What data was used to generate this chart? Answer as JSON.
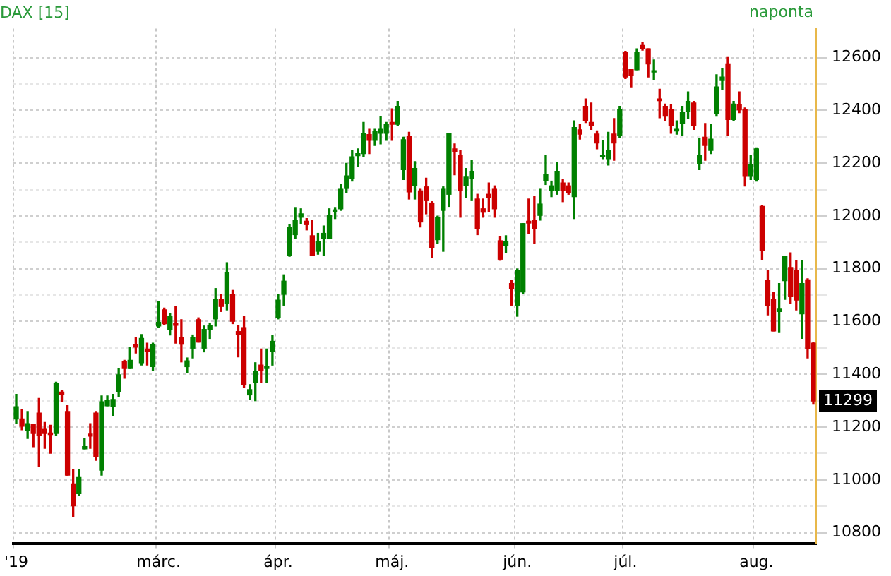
{
  "chart_data": {
    "type": "candlestick",
    "title": "DAX [15]",
    "annotations": [
      "naponta",
      {
        "text": "11299",
        "y": 11299
      }
    ],
    "categories": [
      "'19",
      null,
      null,
      null,
      null,
      null,
      null,
      null,
      null,
      null,
      null,
      null,
      null,
      null,
      null,
      null,
      null,
      null,
      null,
      null,
      null,
      null,
      null,
      null,
      null,
      "márc.",
      null,
      null,
      null,
      null,
      null,
      null,
      null,
      null,
      null,
      null,
      null,
      null,
      null,
      null,
      null,
      null,
      null,
      null,
      null,
      null,
      "ápr.",
      null,
      null,
      null,
      null,
      null,
      null,
      null,
      null,
      null,
      null,
      null,
      null,
      null,
      null,
      null,
      null,
      null,
      null,
      null,
      "máj.",
      null,
      null,
      null,
      null,
      null,
      null,
      null,
      null,
      null,
      null,
      null,
      null,
      null,
      null,
      null,
      null,
      null,
      null,
      null,
      null,
      null,
      "jún.",
      null,
      null,
      null,
      null,
      null,
      null,
      null,
      null,
      null,
      null,
      null,
      null,
      null,
      null,
      null,
      null,
      null,
      null,
      "júl.",
      null,
      null,
      null,
      null,
      null,
      null,
      null,
      null,
      null,
      null,
      null,
      null,
      null,
      null,
      null,
      null,
      null,
      null,
      null,
      null,
      null,
      null,
      "aug.",
      null,
      null,
      null,
      null,
      null,
      null,
      null,
      null,
      null,
      null
    ],
    "ohlc": [
      [
        11231,
        11324,
        11213,
        11277
      ],
      [
        11231,
        11268,
        11190,
        11203
      ],
      [
        11188,
        11259,
        11157,
        11213
      ],
      [
        11211,
        11211,
        11126,
        11176
      ],
      [
        11253,
        11309,
        11050,
        11170
      ],
      [
        11192,
        11218,
        11120,
        11176
      ],
      [
        11177,
        11207,
        11101,
        11172
      ],
      [
        11176,
        11370,
        11170,
        11364
      ],
      [
        11333,
        11340,
        11296,
        11322
      ],
      [
        11259,
        11281,
        11018,
        11018
      ],
      [
        10985,
        11040,
        10861,
        10902
      ],
      [
        10948,
        11040,
        10941,
        11009
      ],
      [
        11118,
        11157,
        11118,
        11126
      ],
      [
        11174,
        11213,
        11120,
        11166
      ],
      [
        11253,
        11259,
        11074,
        11089
      ],
      [
        11037,
        11318,
        11018,
        11296
      ],
      [
        11281,
        11318,
        11281,
        11300
      ],
      [
        11277,
        11324,
        11244,
        11305
      ],
      [
        11333,
        11422,
        11314,
        11398
      ],
      [
        11447,
        11453,
        11385,
        11422
      ],
      [
        11422,
        11503,
        11422,
        11453
      ],
      [
        11514,
        11540,
        11481,
        11503
      ],
      [
        11444,
        11551,
        11435,
        11536
      ],
      [
        11496,
        11518,
        11435,
        11488
      ],
      [
        11429,
        11518,
        11416,
        11514
      ],
      [
        11583,
        11675,
        11577,
        11597
      ],
      [
        11644,
        11651,
        11588,
        11592
      ],
      [
        11570,
        11629,
        11549,
        11620
      ],
      [
        11592,
        11657,
        11518,
        11586
      ],
      [
        11540,
        11607,
        11447,
        11514
      ],
      [
        11429,
        11462,
        11407,
        11451
      ],
      [
        11499,
        11549,
        11462,
        11540
      ],
      [
        11607,
        11614,
        11522,
        11522
      ],
      [
        11499,
        11583,
        11485,
        11570
      ],
      [
        11570,
        11592,
        11536,
        11586
      ],
      [
        11610,
        11725,
        11583,
        11684
      ],
      [
        11684,
        11703,
        11638,
        11657
      ],
      [
        11670,
        11823,
        11644,
        11786
      ],
      [
        11703,
        11718,
        11592,
        11601
      ],
      [
        11562,
        11586,
        11466,
        11551
      ],
      [
        11577,
        11620,
        11351,
        11361
      ],
      [
        11322,
        11361,
        11305,
        11342
      ],
      [
        11370,
        11444,
        11300,
        11412
      ],
      [
        11435,
        11496,
        11370,
        11416
      ],
      [
        11422,
        11496,
        11370,
        11429
      ],
      [
        11488,
        11546,
        11435,
        11525
      ],
      [
        11614,
        11703,
        11610,
        11681
      ],
      [
        11703,
        11777,
        11662,
        11753
      ],
      [
        11851,
        11966,
        11847,
        11956
      ],
      [
        11929,
        12032,
        11916,
        11984
      ],
      [
        11995,
        12027,
        11971,
        12008
      ],
      [
        11980,
        11990,
        11947,
        11967
      ],
      [
        11925,
        11984,
        11851,
        11851
      ],
      [
        11866,
        11934,
        11855,
        11903
      ],
      [
        11916,
        11962,
        11851,
        11934
      ],
      [
        11916,
        12027,
        11916,
        12002
      ],
      [
        12017,
        12032,
        11990,
        12023
      ],
      [
        12027,
        12119,
        12021,
        12101
      ],
      [
        12104,
        12199,
        12088,
        12152
      ],
      [
        12143,
        12248,
        12132,
        12224
      ],
      [
        12228,
        12254,
        12187,
        12236
      ],
      [
        12236,
        12354,
        12224,
        12313
      ],
      [
        12308,
        12328,
        12236,
        12286
      ],
      [
        12286,
        12328,
        12267,
        12321
      ],
      [
        12313,
        12378,
        12273,
        12328
      ],
      [
        12313,
        12354,
        12286,
        12347
      ],
      [
        12354,
        12406,
        12286,
        12347
      ],
      [
        12347,
        12434,
        12341,
        12415
      ],
      [
        12175,
        12298,
        12138,
        12289
      ],
      [
        12302,
        12317,
        12064,
        12091
      ],
      [
        12114,
        12206,
        12064,
        12180
      ],
      [
        12095,
        12101,
        11958,
        11977
      ],
      [
        12110,
        12143,
        12008,
        12058
      ],
      [
        12049,
        12054,
        11842,
        11879
      ],
      [
        11910,
        11999,
        11897,
        11993
      ],
      [
        12021,
        12110,
        11866,
        12101
      ],
      [
        12082,
        12313,
        12036,
        12313
      ],
      [
        12254,
        12273,
        12156,
        12243
      ],
      [
        12230,
        12248,
        11995,
        12095
      ],
      [
        12114,
        12180,
        12069,
        12147
      ],
      [
        12143,
        12212,
        12058,
        12169
      ],
      [
        12064,
        12082,
        11929,
        11953
      ],
      [
        12027,
        12064,
        11995,
        12014
      ],
      [
        12082,
        12125,
        12017,
        12069
      ],
      [
        12101,
        12114,
        11995,
        12027
      ],
      [
        11906,
        11921,
        11832,
        11836
      ],
      [
        11888,
        11925,
        11860,
        11903
      ],
      [
        11744,
        11755,
        11662,
        11725
      ],
      [
        11662,
        11799,
        11620,
        11792
      ],
      [
        11712,
        11971,
        11707,
        11971
      ],
      [
        11980,
        12064,
        11934,
        11973
      ],
      [
        11984,
        12073,
        11897,
        11953
      ],
      [
        12002,
        12101,
        11984,
        12045
      ],
      [
        12134,
        12230,
        12119,
        12156
      ],
      [
        12097,
        12132,
        12073,
        12114
      ],
      [
        12097,
        12202,
        12082,
        12169
      ],
      [
        12125,
        12138,
        12054,
        12097
      ],
      [
        12114,
        12125,
        12082,
        12088
      ],
      [
        12073,
        12360,
        11990,
        12335
      ],
      [
        12326,
        12347,
        12291,
        12310
      ],
      [
        12415,
        12443,
        12354,
        12360
      ],
      [
        12354,
        12428,
        12328,
        12341
      ],
      [
        12310,
        12322,
        12254,
        12276
      ],
      [
        12224,
        12286,
        12217,
        12230
      ],
      [
        12217,
        12317,
        12193,
        12248
      ],
      [
        12310,
        12369,
        12211,
        12276
      ],
      [
        12304,
        12415,
        12298,
        12402
      ],
      [
        12619,
        12624,
        12520,
        12526
      ],
      [
        12554,
        12554,
        12489,
        12532
      ],
      [
        12554,
        12633,
        12554,
        12619
      ],
      [
        12646,
        12656,
        12628,
        12633
      ],
      [
        12633,
        12633,
        12526,
        12576
      ],
      [
        12545,
        12591,
        12517,
        12548
      ],
      [
        12443,
        12480,
        12372,
        12437
      ],
      [
        12415,
        12424,
        12360,
        12378
      ],
      [
        12402,
        12421,
        12313,
        12341
      ],
      [
        12322,
        12360,
        12310,
        12328
      ],
      [
        12350,
        12415,
        12304,
        12391
      ],
      [
        12396,
        12470,
        12369,
        12434
      ],
      [
        12428,
        12434,
        12328,
        12341
      ],
      [
        12199,
        12295,
        12175,
        12230
      ],
      [
        12298,
        12350,
        12211,
        12267
      ],
      [
        12248,
        12347,
        12236,
        12291
      ],
      [
        12387,
        12535,
        12378,
        12489
      ],
      [
        12513,
        12557,
        12480,
        12526
      ],
      [
        12576,
        12600,
        12304,
        12365
      ],
      [
        12365,
        12434,
        12360,
        12424
      ],
      [
        12421,
        12470,
        12391,
        12402
      ],
      [
        12402,
        12409,
        12113,
        12150
      ],
      [
        12150,
        12230,
        12138,
        12193
      ],
      [
        12138,
        12258,
        12132,
        12254
      ],
      [
        12036,
        12040,
        11836,
        11869
      ],
      [
        11755,
        11795,
        11625,
        11662
      ],
      [
        11684,
        11712,
        11564,
        11564
      ],
      [
        11638,
        11744,
        11558,
        11647
      ],
      [
        11755,
        11847,
        11684,
        11847
      ],
      [
        11805,
        11860,
        11670,
        11694
      ],
      [
        11795,
        11832,
        11644,
        11681
      ],
      [
        11629,
        11832,
        11536,
        11744
      ],
      [
        11758,
        11762,
        11462,
        11496
      ],
      [
        11518,
        11522,
        11287,
        11299
      ]
    ],
    "colors": [
      "#008000",
      "#cc0000",
      "#008000",
      "#cc0000",
      "#cc0000",
      "#cc0000",
      "#cc0000",
      "#008000",
      "#cc0000",
      "#cc0000",
      "#cc0000",
      "#008000",
      "#008000",
      "#cc0000",
      "#cc0000",
      "#008000",
      "#008000",
      "#008000",
      "#008000",
      "#cc0000",
      "#008000",
      "#cc0000",
      "#008000",
      "#cc0000",
      "#008000",
      "#008000",
      "#cc0000",
      "#008000",
      "#cc0000",
      "#cc0000",
      "#008000",
      "#008000",
      "#cc0000",
      "#008000",
      "#008000",
      "#008000",
      "#cc0000",
      "#008000",
      "#cc0000",
      "#cc0000",
      "#cc0000",
      "#008000",
      "#008000",
      "#cc0000",
      "#008000",
      "#008000",
      "#008000",
      "#008000",
      "#008000",
      "#008000",
      "#008000",
      "#cc0000",
      "#cc0000",
      "#008000",
      "#008000",
      "#008000",
      "#008000",
      "#008000",
      "#008000",
      "#008000",
      "#008000",
      "#008000",
      "#cc0000",
      "#008000",
      "#008000",
      "#008000",
      "#cc0000",
      "#008000",
      "#008000",
      "#cc0000",
      "#008000",
      "#cc0000",
      "#cc0000",
      "#cc0000",
      "#008000",
      "#008000",
      "#008000",
      "#cc0000",
      "#cc0000",
      "#008000",
      "#008000",
      "#cc0000",
      "#cc0000",
      "#cc0000",
      "#cc0000",
      "#cc0000",
      "#008000",
      "#cc0000",
      "#008000",
      "#008000",
      "#cc0000",
      "#cc0000",
      "#008000",
      "#008000",
      "#008000",
      "#008000",
      "#cc0000",
      "#cc0000",
      "#008000",
      "#cc0000",
      "#cc0000",
      "#cc0000",
      "#cc0000",
      "#008000",
      "#008000",
      "#cc0000",
      "#008000",
      "#cc0000",
      "#cc0000",
      "#008000",
      "#cc0000",
      "#cc0000",
      "#008000",
      "#cc0000",
      "#cc0000",
      "#cc0000",
      "#008000",
      "#008000",
      "#008000",
      "#cc0000",
      "#008000",
      "#cc0000",
      "#008000",
      "#008000",
      "#008000",
      "#cc0000",
      "#008000",
      "#cc0000",
      "#cc0000",
      "#008000",
      "#008000",
      "#cc0000",
      "#cc0000",
      "#cc0000",
      "#008000",
      "#008000",
      "#cc0000",
      "#cc0000",
      "#008000",
      "#cc0000",
      "#cc0000"
    ],
    "ylim": [
      10760,
      12710
    ],
    "yticks": [
      10800,
      {
        "value": 10900,
        "label": null
      },
      11000,
      {
        "value": 11100,
        "label": null
      },
      11200,
      {
        "value": 11300,
        "label": null
      },
      11400,
      {
        "value": 11500,
        "label": null
      },
      11600,
      {
        "value": 11700,
        "label": null
      },
      11800,
      {
        "value": 11900,
        "label": null
      },
      12000,
      {
        "value": 12100,
        "label": null
      },
      12200,
      {
        "value": 12300,
        "label": null
      },
      12400,
      {
        "value": 12500,
        "label": null
      },
      12600
    ],
    "grid": true
  }
}
